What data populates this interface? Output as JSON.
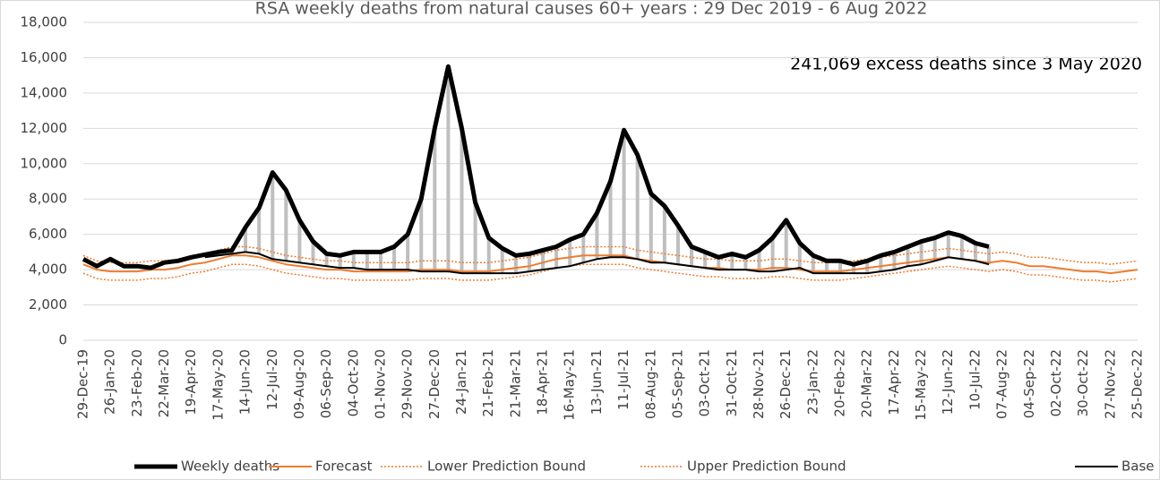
{
  "chart_data": {
    "type": "line",
    "title": "RSA weekly deaths from natural causes 60+ years : 29 Dec 2019 - 6 Aug 2022",
    "annotation": "241,069 excess deaths since 3 May 2020",
    "categories": [
      "29-Dec-19",
      null,
      "26-Jan-20",
      null,
      "23-Feb-20",
      null,
      "22-Mar-20",
      null,
      "19-Apr-20",
      null,
      "17-May-20",
      null,
      "14-Jun-20",
      null,
      "12-Jul-20",
      null,
      "09-Aug-20",
      null,
      "06-Sep-20",
      null,
      "04-Oct-20",
      null,
      "01-Nov-20",
      null,
      "29-Nov-20",
      null,
      "27-Dec-20",
      null,
      "24-Jan-21",
      null,
      "21-Feb-21",
      null,
      "21-Mar-21",
      null,
      "18-Apr-21",
      null,
      "16-May-21",
      null,
      "13-Jun-21",
      null,
      "11-Jul-21",
      null,
      "08-Aug-21",
      null,
      "05-Sep-21",
      null,
      "03-Oct-21",
      null,
      "31-Oct-21",
      null,
      "28-Nov-21",
      null,
      "26-Dec-21",
      null,
      "23-Jan-22",
      null,
      "20-Feb-22",
      null,
      "20-Mar-22",
      null,
      "17-Apr-22",
      null,
      "15-May-22",
      null,
      "12-Jun-22",
      null,
      "10-Jul-22",
      null,
      "07-Aug-22",
      null,
      "04-Sep-22",
      null,
      "02-Oct-22",
      null,
      "30-Oct-22",
      null,
      "27-Nov-22",
      null,
      "25-Dec-22"
    ],
    "series": [
      {
        "name": "Weekly deaths",
        "color": "#000000",
        "dash": "solid",
        "values": [
          4600,
          4200,
          4600,
          4200,
          4200,
          4100,
          4400,
          4500,
          4700,
          4850,
          5000,
          5100,
          6400,
          7500,
          9500,
          8500,
          6800,
          5600,
          4900,
          4800,
          5000,
          5000,
          5000,
          5300,
          6000,
          8000,
          12000,
          15500,
          12000,
          7800,
          5800,
          5200,
          4800,
          4900,
          5100,
          5300,
          5700,
          6000,
          7200,
          9000,
          11900,
          10500,
          8300,
          7600,
          6500,
          5300,
          5000,
          4700,
          4900,
          4700,
          5100,
          5800,
          6800,
          5500,
          4800,
          4500,
          4500,
          4300,
          4500,
          4800,
          5000,
          5300,
          5600,
          5800,
          6100,
          5900,
          5500,
          5300,
          null,
          null,
          null,
          null,
          null,
          null,
          null,
          null,
          null,
          null,
          null
        ]
      },
      {
        "name": "Forecast",
        "color": "#ED7D31",
        "dash": "solid",
        "values": [
          4300,
          4000,
          3900,
          3900,
          3900,
          4000,
          4000,
          4100,
          4300,
          4400,
          4600,
          4800,
          4800,
          4700,
          4500,
          4300,
          4200,
          4100,
          4000,
          4000,
          3900,
          3900,
          3900,
          3900,
          3900,
          4000,
          4000,
          4000,
          3900,
          3900,
          3900,
          4000,
          4100,
          4200,
          4400,
          4600,
          4700,
          4800,
          4800,
          4800,
          4800,
          4600,
          4500,
          4400,
          4300,
          4200,
          4100,
          4100,
          4000,
          4000,
          4000,
          4100,
          4100,
          4000,
          3900,
          3900,
          3900,
          4000,
          4100,
          4200,
          4300,
          4400,
          4500,
          4600,
          4700,
          4600,
          4500,
          4400,
          4500,
          4400,
          4200,
          4200,
          4100,
          4000,
          3900,
          3900,
          3800,
          3900,
          4000
        ]
      },
      {
        "name": "Lower Prediction Bound",
        "color": "#ED7D31",
        "dash": "dotted",
        "values": [
          3800,
          3500,
          3400,
          3400,
          3400,
          3500,
          3500,
          3600,
          3800,
          3900,
          4100,
          4300,
          4300,
          4200,
          4000,
          3800,
          3700,
          3600,
          3500,
          3500,
          3400,
          3400,
          3400,
          3400,
          3400,
          3500,
          3500,
          3500,
          3400,
          3400,
          3400,
          3500,
          3600,
          3700,
          3900,
          4100,
          4200,
          4300,
          4300,
          4300,
          4300,
          4100,
          4000,
          3900,
          3800,
          3700,
          3600,
          3600,
          3500,
          3500,
          3500,
          3600,
          3600,
          3500,
          3400,
          3400,
          3400,
          3500,
          3600,
          3700,
          3800,
          3900,
          4000,
          4100,
          4200,
          4100,
          4000,
          3900,
          4000,
          3900,
          3700,
          3700,
          3600,
          3500,
          3400,
          3400,
          3300,
          3400,
          3500
        ]
      },
      {
        "name": "Upper Prediction Bound",
        "color": "#ED7D31",
        "dash": "dotted",
        "values": [
          4800,
          4500,
          4400,
          4400,
          4400,
          4500,
          4500,
          4600,
          4800,
          4900,
          5100,
          5300,
          5300,
          5200,
          5000,
          4800,
          4700,
          4600,
          4500,
          4500,
          4400,
          4400,
          4400,
          4400,
          4400,
          4500,
          4500,
          4500,
          4400,
          4400,
          4400,
          4500,
          4600,
          4700,
          4900,
          5100,
          5200,
          5300,
          5300,
          5300,
          5300,
          5100,
          5000,
          4900,
          4800,
          4700,
          4600,
          4600,
          4500,
          4500,
          4500,
          4600,
          4600,
          4500,
          4400,
          4400,
          4400,
          4500,
          4600,
          4700,
          4800,
          4900,
          5000,
          5100,
          5200,
          5100,
          5000,
          4900,
          5000,
          4900,
          4700,
          4700,
          4600,
          4500,
          4400,
          4400,
          4300,
          4400,
          4500
        ]
      },
      {
        "name": "Base",
        "color": "#000000",
        "dash": "solid",
        "values": [
          null,
          null,
          null,
          null,
          null,
          null,
          null,
          null,
          null,
          4700,
          4800,
          4900,
          5000,
          4900,
          4600,
          4500,
          4400,
          4300,
          4200,
          4100,
          4100,
          4000,
          4000,
          4000,
          4000,
          3900,
          3900,
          3900,
          3800,
          3800,
          3800,
          3800,
          3800,
          3900,
          4000,
          4100,
          4200,
          4400,
          4600,
          4700,
          4700,
          4600,
          4400,
          4400,
          4300,
          4200,
          4100,
          4000,
          4000,
          4000,
          3900,
          3900,
          4000,
          4100,
          3800,
          3800,
          3800,
          3800,
          3800,
          3900,
          4000,
          4200,
          4300,
          4500,
          4700,
          4600,
          4500,
          4300,
          null,
          null,
          null,
          null,
          null,
          null,
          null,
          null,
          null,
          null,
          null
        ]
      }
    ],
    "excess_color": "#BFBFBF",
    "ylim": [
      0,
      18000
    ],
    "yticks": [
      0,
      {
        "value": 2000,
        "label": "2,000"
      },
      {
        "value": 4000,
        "label": "4,000"
      },
      {
        "value": 6000,
        "label": "6,000"
      },
      {
        "value": 8000,
        "label": "8,000"
      },
      {
        "value": 10000,
        "label": "10,000"
      },
      {
        "value": 12000,
        "label": "12,000"
      },
      {
        "value": 14000,
        "label": "14,000"
      },
      {
        "value": 16000,
        "label": "16,000"
      },
      {
        "value": 18000,
        "label": "18,000"
      }
    ],
    "grid": true,
    "legend": "bottom"
  }
}
